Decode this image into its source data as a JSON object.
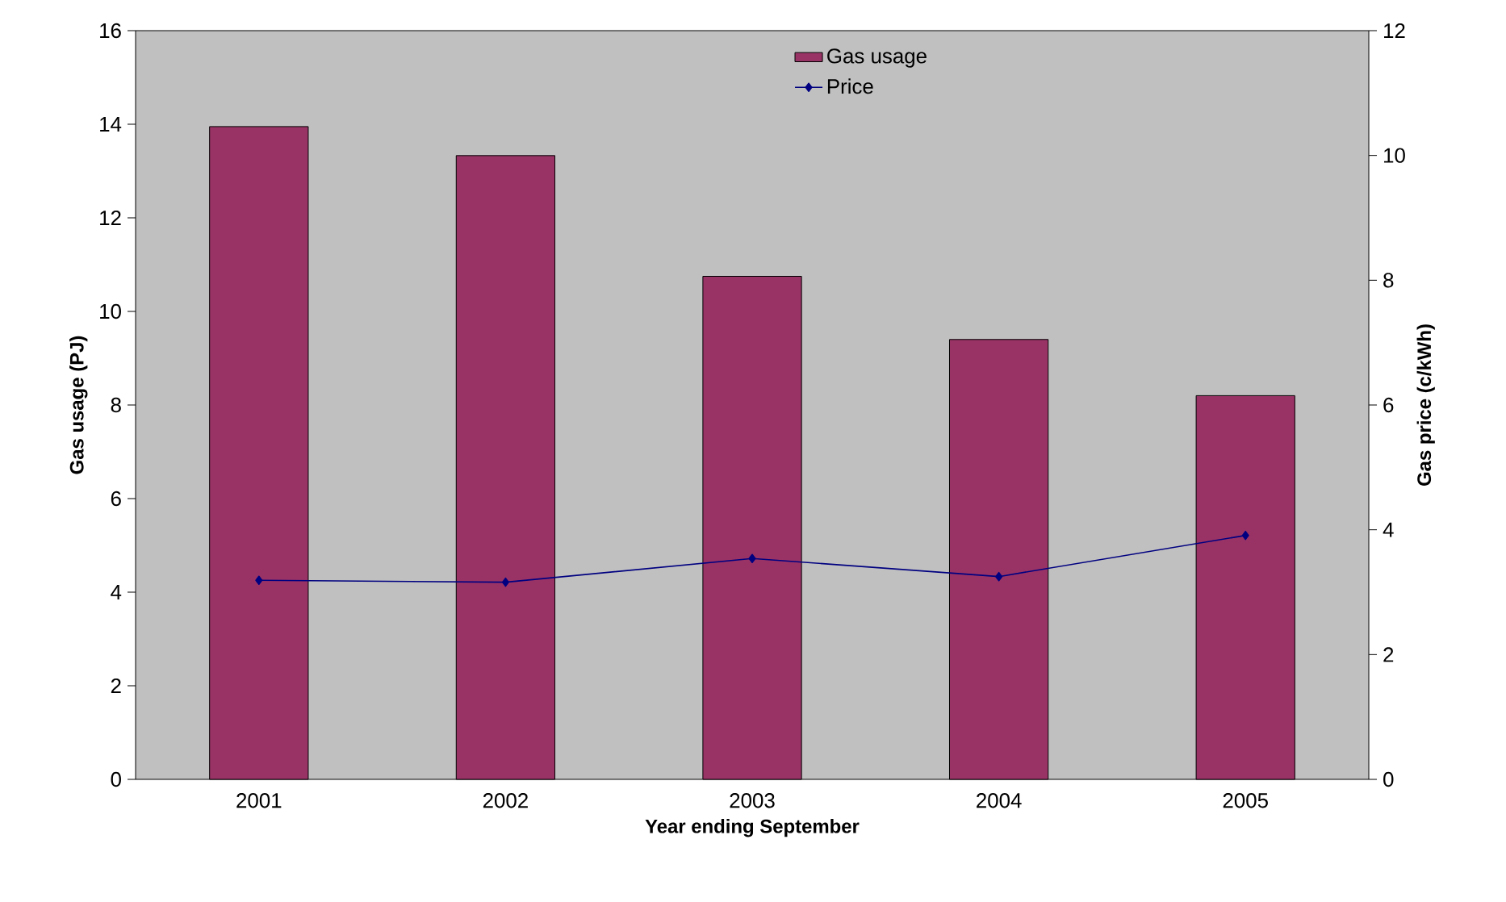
{
  "chart_data": {
    "type": "bar",
    "xlabel": "Year ending September",
    "ylabel": "Gas usage (PJ)",
    "y2label": "Gas price (c/kWh)",
    "categories": [
      "2001",
      "2002",
      "2003",
      "2004",
      "2005"
    ],
    "series": [
      {
        "name": "Gas usage",
        "color": "#993366",
        "values": [
          13.95,
          13.33,
          10.75,
          9.4,
          8.2
        ]
      },
      {
        "name": "Price",
        "type": "line",
        "axis": "y2",
        "color": "#000080",
        "marker": "diamond",
        "values": [
          3.19,
          3.16,
          3.54,
          3.25,
          3.91
        ]
      }
    ],
    "ylim": [
      0,
      16
    ],
    "yticks": [
      0,
      2,
      4,
      6,
      8,
      10,
      12,
      14,
      16
    ],
    "y2lim": [
      0,
      12
    ],
    "y2ticks": [
      0,
      2,
      4,
      6,
      8,
      10,
      12
    ],
    "legend": "top"
  }
}
